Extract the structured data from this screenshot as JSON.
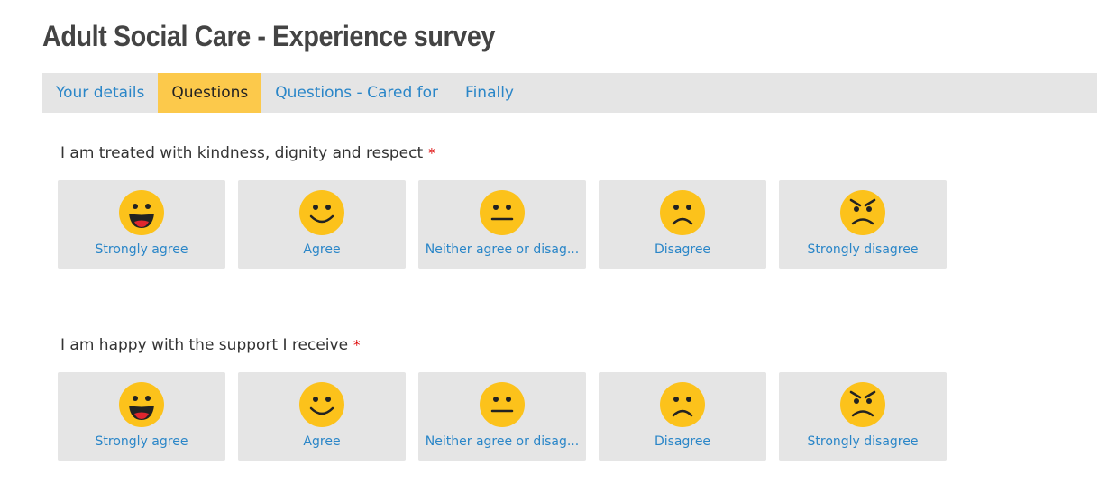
{
  "title": "Adult Social Care - Experience survey",
  "tabs": [
    {
      "label": "Your details",
      "active": false
    },
    {
      "label": "Questions",
      "active": true
    },
    {
      "label": "Questions - Cared for",
      "active": false
    },
    {
      "label": "Finally",
      "active": false
    }
  ],
  "required_marker": "*",
  "questions": [
    {
      "text": "I am treated with kindness, dignity and respect",
      "options": [
        {
          "label": "Strongly agree",
          "icon": "laughing-face-icon"
        },
        {
          "label": "Agree",
          "icon": "smiling-face-icon"
        },
        {
          "label": "Neither agree or disag...",
          "icon": "neutral-face-icon"
        },
        {
          "label": "Disagree",
          "icon": "frowning-face-icon"
        },
        {
          "label": "Strongly disagree",
          "icon": "angry-face-icon"
        }
      ]
    },
    {
      "text": "I am happy with the support I receive",
      "options": [
        {
          "label": "Strongly agree",
          "icon": "laughing-face-icon"
        },
        {
          "label": "Agree",
          "icon": "smiling-face-icon"
        },
        {
          "label": "Neither agree or disag...",
          "icon": "neutral-face-icon"
        },
        {
          "label": "Disagree",
          "icon": "frowning-face-icon"
        },
        {
          "label": "Strongly disagree",
          "icon": "angry-face-icon"
        }
      ]
    }
  ],
  "colors": {
    "accent": "#2a86c8",
    "active_tab": "#fcc94b",
    "tile": "#e5e5e5",
    "face": "#fcc21b",
    "required": "#dd0000"
  }
}
